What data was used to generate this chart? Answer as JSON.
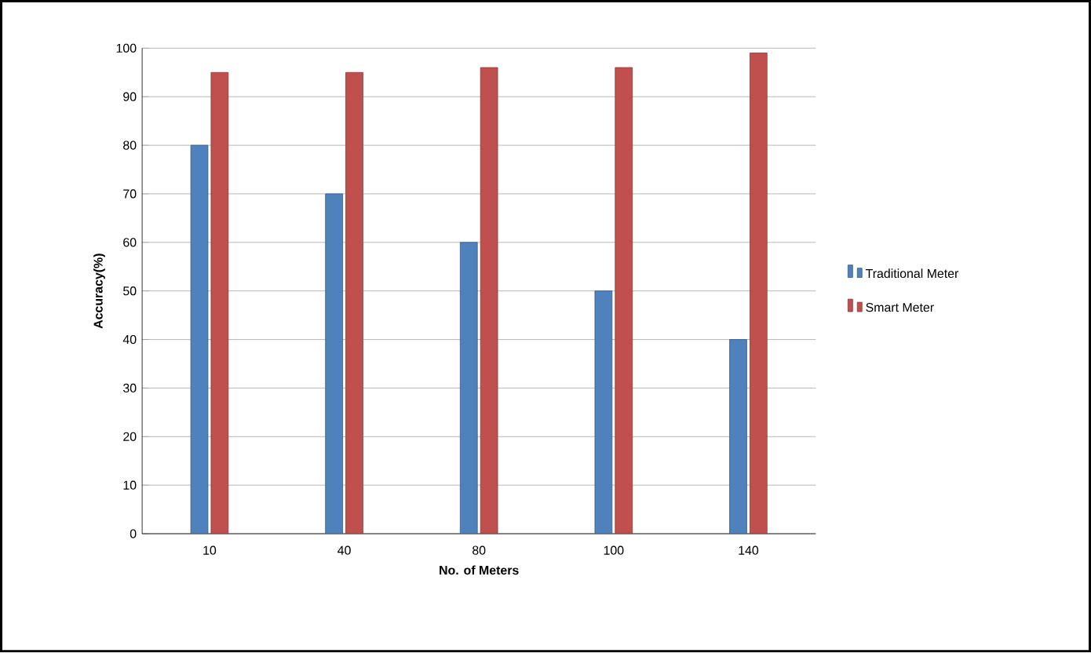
{
  "chart_data": {
    "type": "bar",
    "xlabel": "No. of Meters",
    "ylabel": "Accuracy(%)",
    "categories": [
      "10",
      "40",
      "80",
      "100",
      "140"
    ],
    "series": [
      {
        "name": "Traditional Meter",
        "color": "#4f81bd",
        "values": [
          80,
          70,
          60,
          50,
          40
        ]
      },
      {
        "name": "Smart Meter",
        "color": "#c0504d",
        "values": [
          95,
          95,
          96,
          96,
          99
        ]
      }
    ],
    "ylim": [
      0,
      100
    ],
    "yticks": [
      0,
      10,
      20,
      30,
      40,
      50,
      60,
      70,
      80,
      90,
      100
    ],
    "grid": "y",
    "legend": "right"
  }
}
